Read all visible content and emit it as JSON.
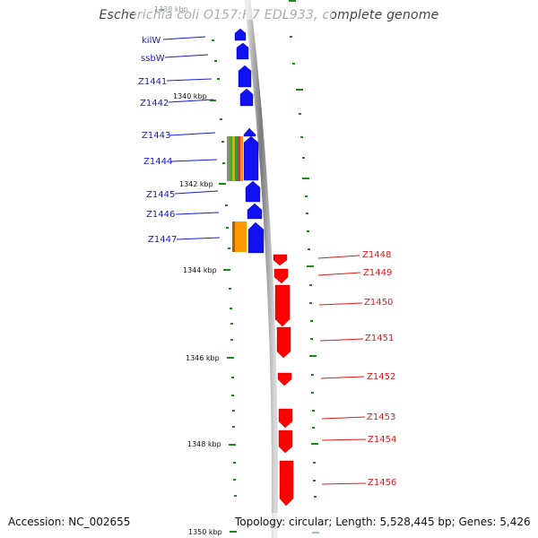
{
  "title": "Escherichia coli O157:H7 EDL933, complete genome",
  "footer": {
    "accession": "Accession: NC_002655",
    "topology": "Topology: circular; Length: 5,528,445 bp; Genes: 5,426"
  },
  "colors": {
    "forward": "#0000ff",
    "reverse": "#ff0000",
    "backbone": "#888888",
    "tick": "#1a8a1a"
  },
  "kbp_markers": [
    {
      "label": "1338 kbp",
      "faded": true
    },
    {
      "label": "1340 kbp"
    },
    {
      "label": "1342 kbp"
    },
    {
      "label": "1344 kbp"
    },
    {
      "label": "1346 kbp"
    },
    {
      "label": "1348 kbp"
    },
    {
      "label": "1350 kbp"
    }
  ],
  "forward_genes": [
    "kilW",
    "ssbW",
    "Z1441",
    "Z1442",
    "Z1443",
    "Z1444",
    "Z1445",
    "Z1446",
    "Z1447"
  ],
  "reverse_genes": [
    "Z1448",
    "Z1449",
    "Z1450",
    "Z1451",
    "Z1452",
    "Z1453",
    "Z1454",
    "Z1456"
  ]
}
